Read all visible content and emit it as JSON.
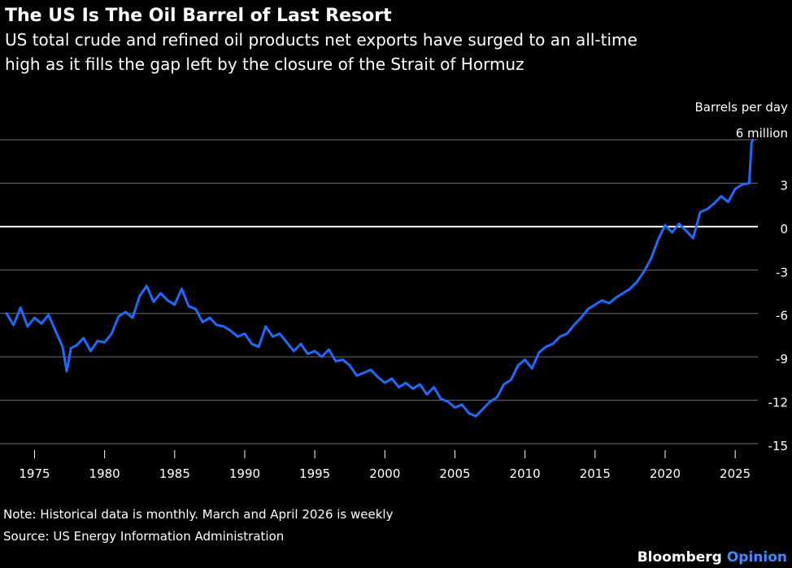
{
  "title": "The US Is The Oil Barrel of Last Resort",
  "subtitle_lines": [
    "US total crude and refined oil products net exports have surged to an all-time",
    "high as it fills the gap left by the closure of the Strait of Hormuz"
  ],
  "notes": {
    "note": "Note: Historical data is monthly. March and April 2026 is weekly",
    "source": "Source: US Energy Information Administration"
  },
  "branding": {
    "name": "Bloomberg",
    "suffix": "Opinion"
  },
  "colors": {
    "background": "#000000",
    "line": "#1f6bff",
    "grid": "#6e6e6e",
    "zero_line": "#ffffff",
    "brand_accent": "#3d8bff"
  },
  "chart_data": {
    "type": "line",
    "ylabel": "Barrels per day",
    "y_unit_top": "6 million",
    "ylim": [
      -15,
      6
    ],
    "y_ticks": [
      6,
      3,
      0,
      -3,
      -6,
      -9,
      -12,
      -15
    ],
    "y_tick_labels": [
      "6 million",
      "3",
      "0",
      "-3",
      "-6",
      "-9",
      "-12",
      "-15"
    ],
    "xlim": [
      1973,
      2026.5
    ],
    "x_ticks": [
      1975,
      1980,
      1985,
      1990,
      1995,
      2000,
      2005,
      2010,
      2015,
      2020,
      2025
    ],
    "grid": true,
    "zero_line": true,
    "series": [
      {
        "x": [
          1973,
          1973.5,
          1974,
          1974.5,
          1975,
          1975.5,
          1976,
          1976.5,
          1977,
          1977.3,
          1977.6,
          1978,
          1978.5,
          1979,
          1979.5,
          1980,
          1980.5,
          1981,
          1981.5,
          1982,
          1982.5,
          1983,
          1983.5,
          1984,
          1984.5,
          1985,
          1985.5,
          1986,
          1986.5,
          1987,
          1987.5,
          1988,
          1988.5,
          1989,
          1989.5,
          1990,
          1990.5,
          1991,
          1991.5,
          1992,
          1992.5,
          1993,
          1993.5,
          1994,
          1994.5,
          1995,
          1995.5,
          1996,
          1996.5,
          1997,
          1997.5,
          1998,
          1998.5,
          1999,
          1999.5,
          2000,
          2000.5,
          2001,
          2001.5,
          2002,
          2002.5,
          2003,
          2003.5,
          2004,
          2004.5,
          2005,
          2005.5,
          2006,
          2006.5,
          2007,
          2007.5,
          2008,
          2008.5,
          2009,
          2009.5,
          2010,
          2010.5,
          2011,
          2011.5,
          2012,
          2012.5,
          2013,
          2013.5,
          2014,
          2014.5,
          2015,
          2015.5,
          2016,
          2016.5,
          2017,
          2017.5,
          2018,
          2018.5,
          2019,
          2019.5,
          2020,
          2020.5,
          2021,
          2021.5,
          2022,
          2022.5,
          2023,
          2023.5,
          2024,
          2024.5,
          2025,
          2025.5,
          2026,
          2026.17,
          2026.25
        ],
        "y": [
          -6,
          -6.8,
          -5.6,
          -6.9,
          -6.3,
          -6.7,
          -6.1,
          -7.2,
          -8.3,
          -10,
          -8.4,
          -8.2,
          -7.7,
          -8.6,
          -7.9,
          -8,
          -7.4,
          -6.2,
          -5.9,
          -6.3,
          -4.8,
          -4.1,
          -5.2,
          -4.6,
          -5.1,
          -5.4,
          -4.3,
          -5.5,
          -5.7,
          -6.6,
          -6.3,
          -6.8,
          -6.9,
          -7.2,
          -7.6,
          -7.4,
          -8.1,
          -8.3,
          -6.9,
          -7.6,
          -7.4,
          -8,
          -8.6,
          -8.1,
          -8.8,
          -8.6,
          -9,
          -8.5,
          -9.3,
          -9.2,
          -9.6,
          -10.3,
          -10.1,
          -9.9,
          -10.4,
          -10.8,
          -10.5,
          -11.1,
          -10.8,
          -11.2,
          -10.9,
          -11.6,
          -11.1,
          -11.9,
          -12.1,
          -12.5,
          -12.3,
          -12.9,
          -13.1,
          -12.6,
          -12.1,
          -11.8,
          -10.9,
          -10.6,
          -9.6,
          -9.2,
          -9.8,
          -8.7,
          -8.3,
          -8.1,
          -7.6,
          -7.4,
          -6.8,
          -6.3,
          -5.7,
          -5.4,
          -5.1,
          -5.3,
          -4.9,
          -4.6,
          -4.3,
          -3.8,
          -3.1,
          -2.2,
          -0.9,
          0.1,
          -0.4,
          0.2,
          -0.3,
          -0.8,
          1,
          1.2,
          1.6,
          2.1,
          1.7,
          2.6,
          2.9,
          3,
          5.8,
          6
        ]
      }
    ]
  }
}
